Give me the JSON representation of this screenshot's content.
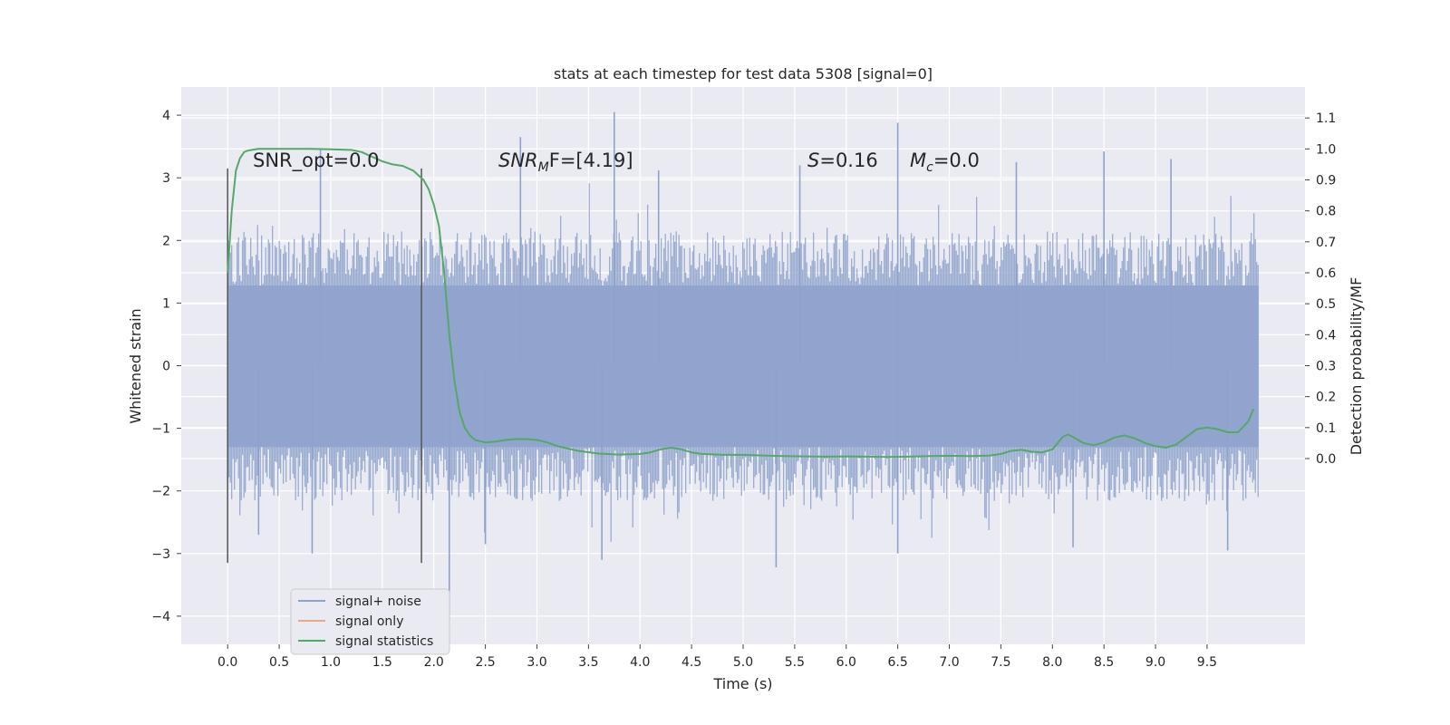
{
  "chart_data": {
    "type": "line",
    "title": "stats at each timestep for test data 5308 [signal=0]",
    "xlabel": "Time (s)",
    "ylabel": "Whitened strain",
    "ylabel_right": "Detection probability/MF",
    "xlim": [
      -0.45,
      10.45
    ],
    "ylim": [
      -4.45,
      4.45
    ],
    "ylim_right": [
      -0.6,
      1.2
    ],
    "x_ticks": [
      "0.0",
      "0.5",
      "1.0",
      "1.5",
      "2.0",
      "2.5",
      "3.0",
      "3.5",
      "4.0",
      "4.5",
      "5.0",
      "5.5",
      "6.0",
      "6.5",
      "7.0",
      "7.5",
      "8.0",
      "8.5",
      "9.0",
      "9.5"
    ],
    "y_ticks": [
      "4",
      "3",
      "2",
      "1",
      "0",
      "−1",
      "−2",
      "−3",
      "−4"
    ],
    "y_ticks_right": [
      "1.1",
      "1.0",
      "0.9",
      "0.8",
      "0.7",
      "0.6",
      "0.5",
      "0.4",
      "0.3",
      "0.2",
      "0.1",
      "0.0"
    ],
    "grid": true,
    "legend_position": "lower-left",
    "legend": [
      {
        "label": "signal+ noise",
        "color": "#8fa2cc"
      },
      {
        "label": "signal only",
        "color": "#e8a88c"
      },
      {
        "label": "signal statistics",
        "color": "#55a868"
      }
    ],
    "annotations": {
      "snr_opt": "SNR_opt=0.0",
      "snr_mf_name": "SNR",
      "snr_mf_sub": "M",
      "snr_mf_tail": "F=[4.19]",
      "s_name": "S",
      "s_value": "=0.16",
      "mc_name": "M",
      "mc_sub": "c",
      "mc_value": "=0.0"
    },
    "markers": [
      {
        "x": 0.0,
        "ymin": -3.15,
        "ymax": 3.15
      },
      {
        "x": 1.88,
        "ymin": -3.15,
        "ymax": 3.15
      }
    ],
    "series": [
      {
        "name": "signal+ noise",
        "axis": "left",
        "style": "noise",
        "x_range": [
          0.0,
          10.0
        ],
        "band_low": -1.3,
        "band_high": 1.28,
        "typical_peak": 2.0,
        "peaks": [
          {
            "x": 0.9,
            "y": 3.45
          },
          {
            "x": 2.84,
            "y": 3.65
          },
          {
            "x": 3.75,
            "y": 4.05
          },
          {
            "x": 4.18,
            "y": 3.12
          },
          {
            "x": 5.55,
            "y": 3.2
          },
          {
            "x": 6.5,
            "y": 3.88
          },
          {
            "x": 7.65,
            "y": 3.25
          },
          {
            "x": 8.5,
            "y": 3.42
          },
          {
            "x": 9.15,
            "y": 3.3
          },
          {
            "x": 0.3,
            "y": -2.7
          },
          {
            "x": 0.82,
            "y": -3.0
          },
          {
            "x": 2.15,
            "y": -4.05
          },
          {
            "x": 2.5,
            "y": -2.85
          },
          {
            "x": 3.63,
            "y": -3.1
          },
          {
            "x": 5.32,
            "y": -3.22
          },
          {
            "x": 6.5,
            "y": -3.0
          },
          {
            "x": 8.2,
            "y": -2.9
          },
          {
            "x": 9.7,
            "y": -2.95
          }
        ]
      },
      {
        "name": "signal statistics",
        "axis": "right",
        "style": "line",
        "x": [
          0.0,
          0.04,
          0.08,
          0.12,
          0.16,
          0.2,
          0.3,
          0.5,
          0.8,
          1.0,
          1.2,
          1.3,
          1.4,
          1.5,
          1.6,
          1.7,
          1.8,
          1.9,
          1.95,
          2.0,
          2.05,
          2.1,
          2.15,
          2.2,
          2.25,
          2.3,
          2.35,
          2.4,
          2.5,
          2.6,
          2.7,
          2.8,
          2.9,
          3.0,
          3.1,
          3.2,
          3.4,
          3.6,
          3.8,
          4.0,
          4.1,
          4.2,
          4.3,
          4.4,
          4.5,
          4.6,
          4.8,
          5.0,
          5.2,
          5.4,
          5.6,
          5.8,
          6.0,
          6.2,
          6.4,
          6.6,
          6.8,
          7.0,
          7.2,
          7.4,
          7.5,
          7.6,
          7.7,
          7.8,
          7.9,
          8.0,
          8.1,
          8.15,
          8.2,
          8.3,
          8.4,
          8.5,
          8.6,
          8.7,
          8.8,
          8.9,
          9.0,
          9.1,
          9.2,
          9.3,
          9.4,
          9.5,
          9.6,
          9.7,
          9.8,
          9.9,
          9.95
        ],
        "y": [
          0.6,
          0.8,
          0.93,
          0.97,
          0.99,
          0.995,
          1.0,
          1.0,
          1.0,
          0.999,
          0.997,
          0.99,
          0.975,
          0.96,
          0.95,
          0.945,
          0.93,
          0.9,
          0.87,
          0.82,
          0.75,
          0.6,
          0.4,
          0.25,
          0.15,
          0.1,
          0.075,
          0.06,
          0.052,
          0.055,
          0.06,
          0.063,
          0.063,
          0.06,
          0.052,
          0.04,
          0.025,
          0.016,
          0.013,
          0.015,
          0.02,
          0.03,
          0.035,
          0.03,
          0.02,
          0.015,
          0.012,
          0.012,
          0.01,
          0.008,
          0.007,
          0.006,
          0.007,
          0.006,
          0.005,
          0.006,
          0.008,
          0.009,
          0.008,
          0.01,
          0.015,
          0.025,
          0.028,
          0.022,
          0.02,
          0.03,
          0.07,
          0.078,
          0.07,
          0.05,
          0.043,
          0.052,
          0.068,
          0.075,
          0.065,
          0.05,
          0.04,
          0.035,
          0.045,
          0.07,
          0.095,
          0.1,
          0.095,
          0.085,
          0.085,
          0.12,
          0.16
        ]
      }
    ]
  }
}
